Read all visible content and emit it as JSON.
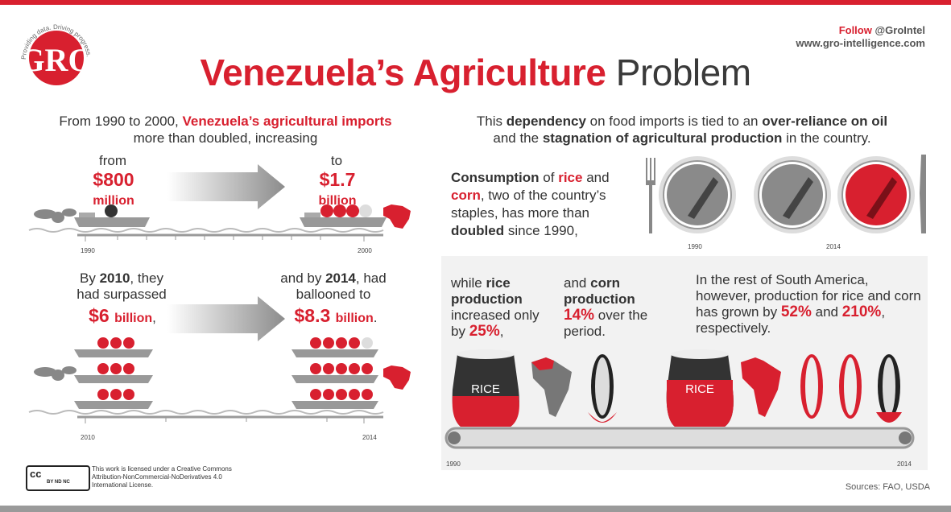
{
  "header": {
    "logo_text": "GRO",
    "logo_tagline": "Providing data. Driving progress.",
    "follow_label": "Follow",
    "twitter_handle": "@GroIntel",
    "website": "www.gro-intelligence.com",
    "title_red": "Venezuela’s Agriculture",
    "title_dark": "Problem"
  },
  "left": {
    "intro_pre": "From 1990 to 2000,",
    "intro_bold_red": "Venezuela’s",
    "intro_bold": "agricultural imports",
    "intro_post": "more than doubled, increasing",
    "from_label": "from",
    "to_label": "to",
    "from_value": "$800",
    "from_unit": "million",
    "to_value": "$1.7",
    "to_unit": "billion",
    "year_start_1": "1990",
    "year_end_1": "2000",
    "by2010_pre": "By",
    "by2010_year": "2010",
    "by2010_post": ", they had surpassed",
    "by2010_value": "$6",
    "by2010_unit": "billion",
    "by2010_comma": ",",
    "by2014_pre": "and by",
    "by2014_year": "2014",
    "by2014_post": ", had ballooned to",
    "by2014_value": "$8.3",
    "by2014_unit": "billion",
    "by2014_period": ".",
    "year_start_2": "2010",
    "year_end_2": "2014"
  },
  "right": {
    "intro_pre": "This",
    "intro_b1": "dependency",
    "intro_mid1": "on food imports is tied to an",
    "intro_b2": "over-reliance on oil",
    "intro_mid2": "and the",
    "intro_b3": "stagnation of agricultural production",
    "intro_post": "in the country.",
    "cons_b1": "Consumption",
    "cons_t1": "of",
    "cons_r1": "rice",
    "cons_t2": "and",
    "cons_r2": "corn",
    "cons_t3": ", two of the country’s staples, has more than",
    "cons_b2": "doubled",
    "cons_t4": "since 1990,",
    "plate_year_1": "1990",
    "plate_year_2": "2014",
    "rice_t1": "while",
    "rice_b1": "rice production",
    "rice_t2": "increased only by",
    "rice_pct": "25%",
    "rice_t3": ",",
    "corn_t1": "and",
    "corn_b1": "corn production",
    "corn_pct": "14%",
    "corn_t2": "over the period.",
    "sa_text": "In the rest of South America, however, production for rice and corn has grown by",
    "sa_rice_pct": "52%",
    "sa_and": "and",
    "sa_corn_pct": "210%",
    "sa_post": ", respectively.",
    "sack_label": "RICE",
    "belt_year_1": "1990",
    "belt_year_2": "2014"
  },
  "footer": {
    "cc_badge": "cc",
    "cc_codes": "BY  ND  NC",
    "license": "This work is licensed under a Creative Commons Attribution-NonCommercial-NoDerivatives 4.0 International License.",
    "sources": "Sources: FAO, USDA"
  },
  "colors": {
    "accent": "#d8202f",
    "dark": "#3a3a3a",
    "grey": "#9a9a9a",
    "panel": "#f2f2f2"
  }
}
